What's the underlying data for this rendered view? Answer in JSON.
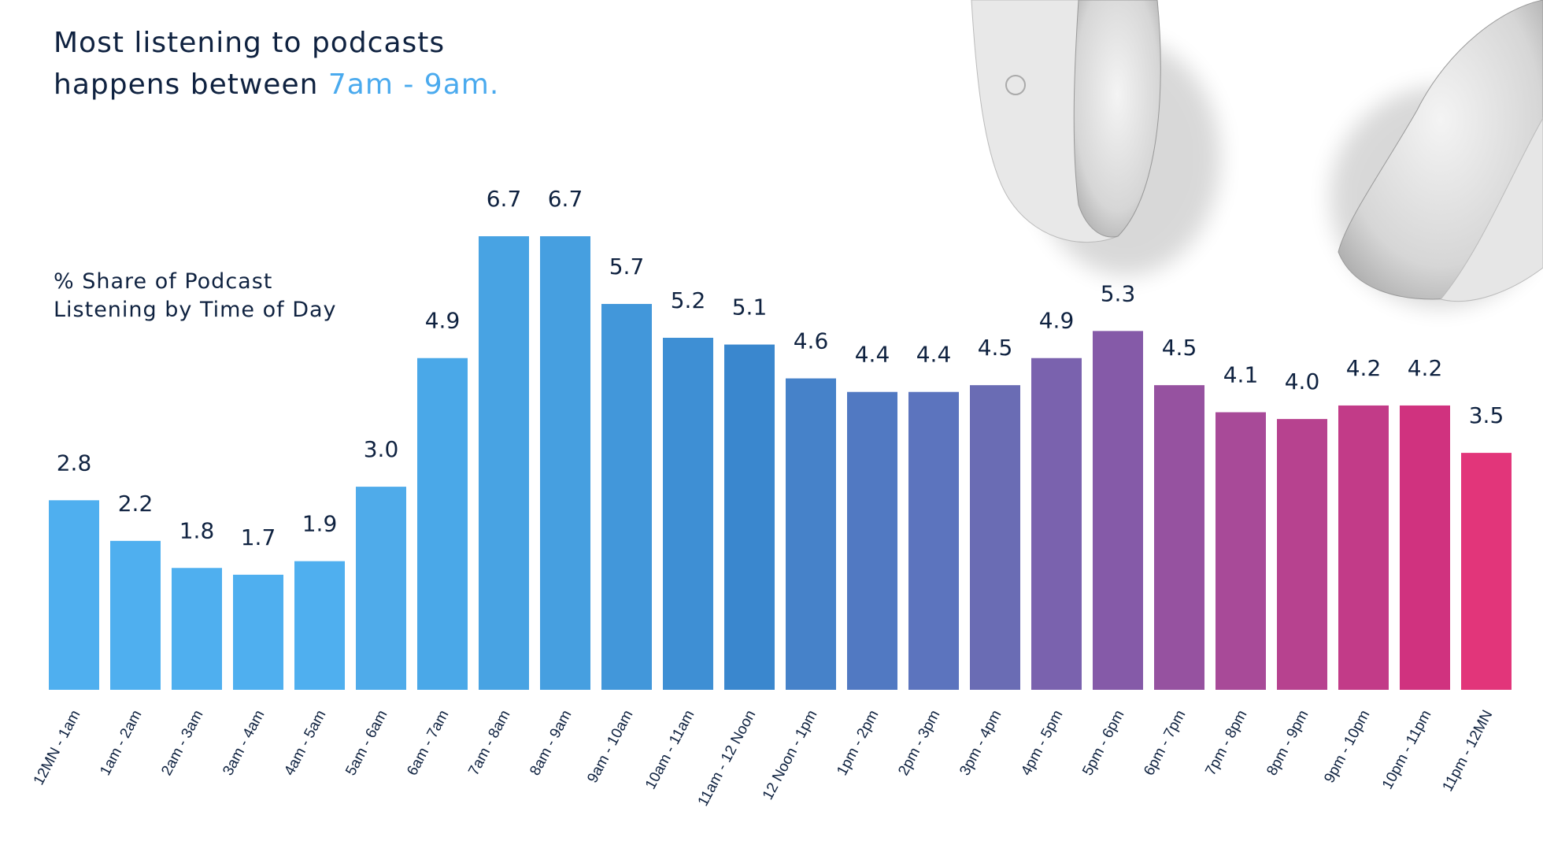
{
  "chart_data": {
    "type": "bar",
    "title_line1": "Most listening to podcasts",
    "title_line2_prefix": "happens between",
    "title_highlight": "7am - 9am.",
    "ylabel_line1": "% Share of Podcast",
    "ylabel_line2": "Listening by Time of Day",
    "xlabel": "",
    "ylim": [
      0,
      6.7
    ],
    "grid": false,
    "categories": [
      "12MN - 1am",
      "1am - 2am",
      "2am - 3am",
      "3am - 4am",
      "4am - 5am",
      "5am - 6am",
      "6am - 7am",
      "7am - 8am",
      "8am - 9am",
      "9am - 10am",
      "10am - 11am",
      "11am - 12 Noon",
      "12 Noon - 1pm",
      "1pm - 2pm",
      "2pm - 3pm",
      "3pm - 4pm",
      "4pm - 5pm",
      "5pm - 6pm",
      "6pm - 7pm",
      "7pm - 8pm",
      "8pm - 9pm",
      "9pm - 10pm",
      "10pm - 11pm",
      "11pm - 12MN"
    ],
    "values": [
      2.8,
      2.2,
      1.8,
      1.7,
      1.9,
      3.0,
      4.9,
      6.7,
      6.7,
      5.7,
      5.2,
      5.1,
      4.6,
      4.4,
      4.4,
      4.5,
      4.9,
      5.3,
      4.5,
      4.1,
      4.0,
      4.2,
      4.2,
      3.5
    ],
    "value_labels": [
      "2.8",
      "2.2",
      "1.8",
      "1.7",
      "1.9",
      "3.0",
      "4.9",
      "6.7",
      "6.7",
      "5.7",
      "5.2",
      "5.1",
      "4.6",
      "4.4",
      "4.4",
      "4.5",
      "4.9",
      "5.3",
      "4.5",
      "4.1",
      "4.0",
      "4.2",
      "4.2",
      "3.5"
    ],
    "bar_colors": [
      "#4FAFEF",
      "#4FAFEF",
      "#4FAFEF",
      "#4FAFEF",
      "#4FAFEF",
      "#4FABEA",
      "#4AA8E8",
      "#48A3E3",
      "#469FE0",
      "#4297DA",
      "#3E8FD4",
      "#3A87CE",
      "#4682C9",
      "#5179C2",
      "#5C74BE",
      "#6A6CB4",
      "#7A62AE",
      "#855AA8",
      "#9652A0",
      "#A84A98",
      "#B7428F",
      "#C23B88",
      "#D0327F",
      "#E2357A"
    ],
    "highlight_color": "#4AAAEE",
    "text_color": "#0F2240"
  }
}
